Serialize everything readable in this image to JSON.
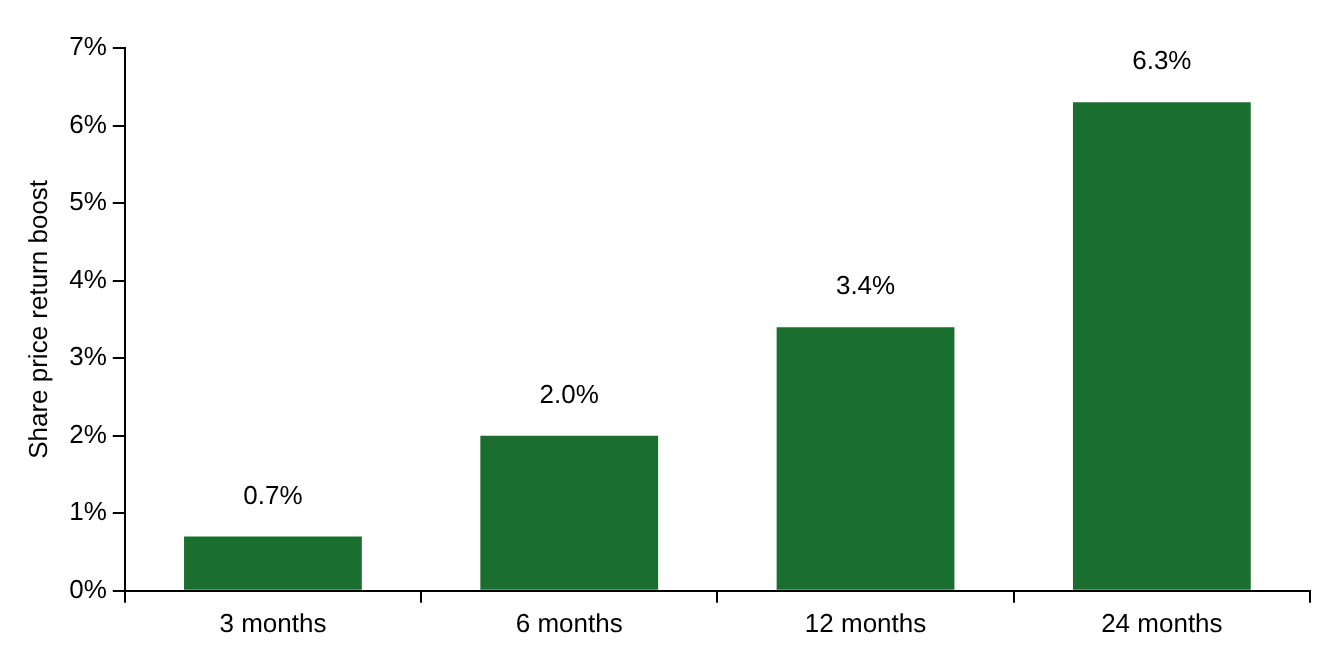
{
  "chart_data": {
    "type": "bar",
    "ylabel": "Share price return boost",
    "categories": [
      "3 months",
      "6 months",
      "12 months",
      "24 months"
    ],
    "values": [
      0.7,
      2.0,
      3.4,
      6.3
    ],
    "color": "#1a6e2e",
    "value_labels": [
      "0.7%",
      "2.0%",
      "3.4%",
      "6.3%"
    ],
    "ylim": [
      0,
      7
    ],
    "yticks": [
      {
        "value": 0,
        "label": "0%"
      },
      {
        "value": 1,
        "label": "1%"
      },
      {
        "value": 2,
        "label": "2%"
      },
      {
        "value": 3,
        "label": "3%"
      },
      {
        "value": 4,
        "label": "4%"
      },
      {
        "value": 5,
        "label": "5%"
      },
      {
        "value": 6,
        "label": "6%"
      },
      {
        "value": 7,
        "label": "7%"
      }
    ],
    "grid": false,
    "legend": false
  }
}
